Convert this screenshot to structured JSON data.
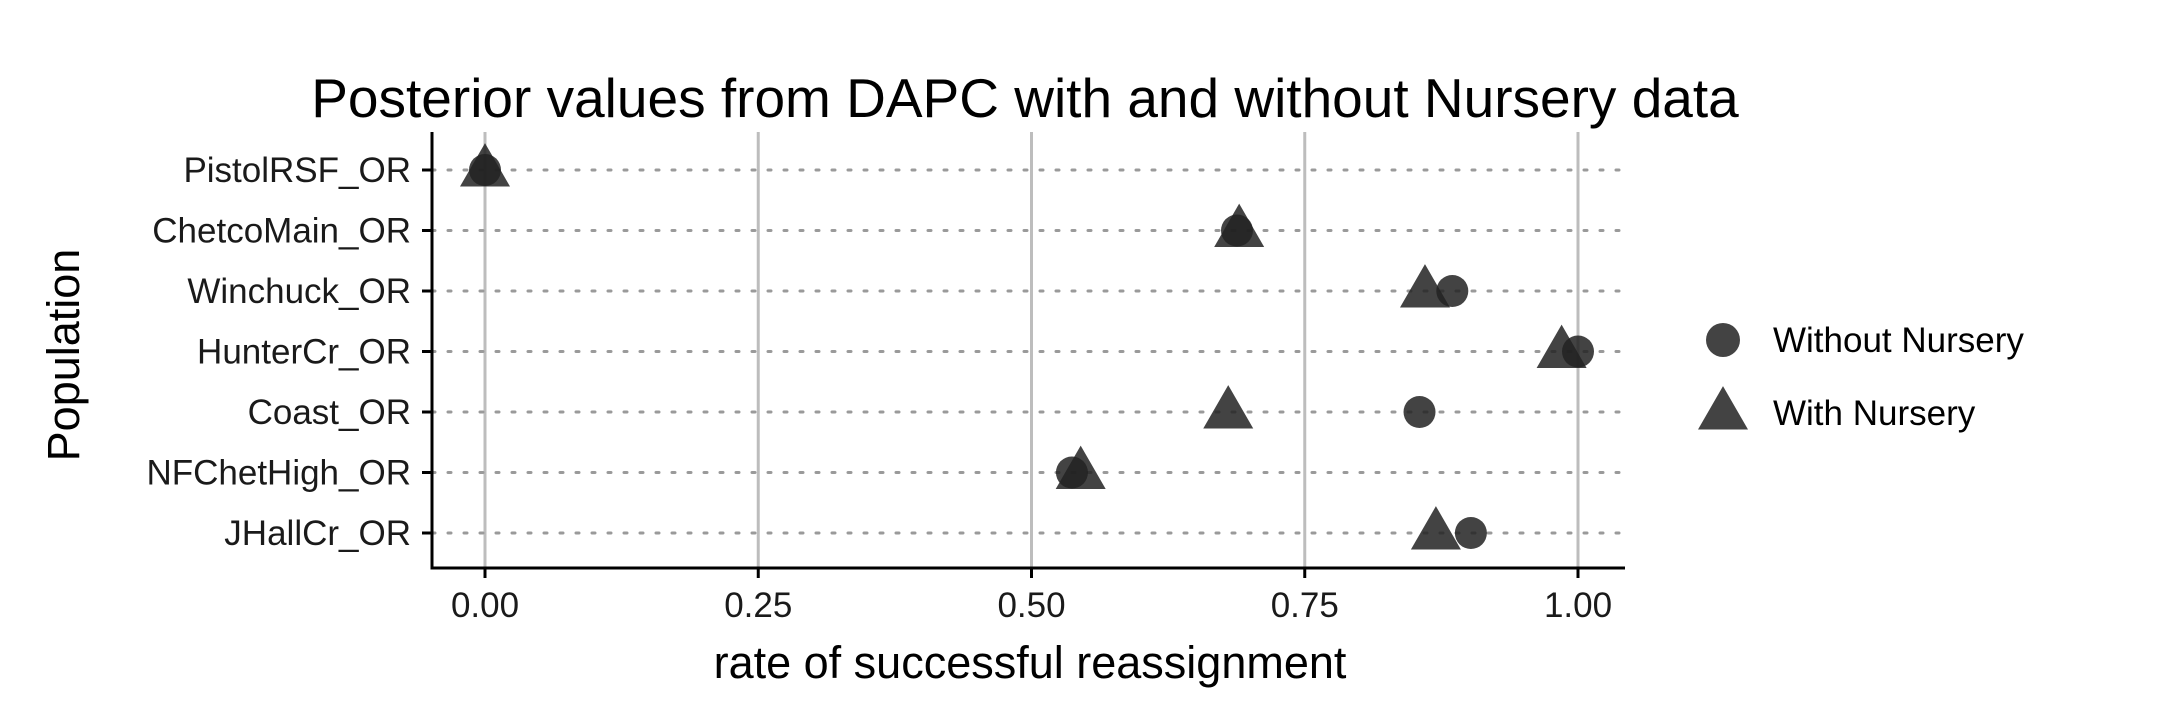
{
  "chart_data": {
    "type": "scatter",
    "title": "Posterior values from DAPC with and without Nursery data",
    "xlabel": "rate of successful reassignment",
    "ylabel": "Population",
    "xlim": [
      -0.05,
      1.05
    ],
    "x_ticks": [
      0,
      0.25,
      0.5,
      0.75,
      1
    ],
    "x_tick_labels": [
      "0.00",
      "0.25",
      "0.50",
      "0.75",
      "1.00"
    ],
    "categories": [
      "PistolRSF_OR",
      "ChetcoMain_OR",
      "Winchuck_OR",
      "HunterCr_OR",
      "Coast_OR",
      "NFChetHigh_OR",
      "JHallCr_OR"
    ],
    "series": [
      {
        "name": "Without Nursery",
        "marker": "circle",
        "values": [
          0.0,
          0.688,
          0.885,
          1.0,
          0.855,
          0.537,
          0.902
        ]
      },
      {
        "name": "With Nursery",
        "marker": "triangle",
        "values": [
          0.0,
          0.69,
          0.86,
          0.985,
          0.68,
          0.545,
          0.87
        ]
      }
    ],
    "grid": {
      "vertical_major": true,
      "horizontal_dotted": true
    },
    "legend_position": "right",
    "colors": {
      "marker": "#222222",
      "vgrid": "#bdbdbd",
      "hgrid": "#9a9a9a",
      "axis": "#000000"
    }
  }
}
